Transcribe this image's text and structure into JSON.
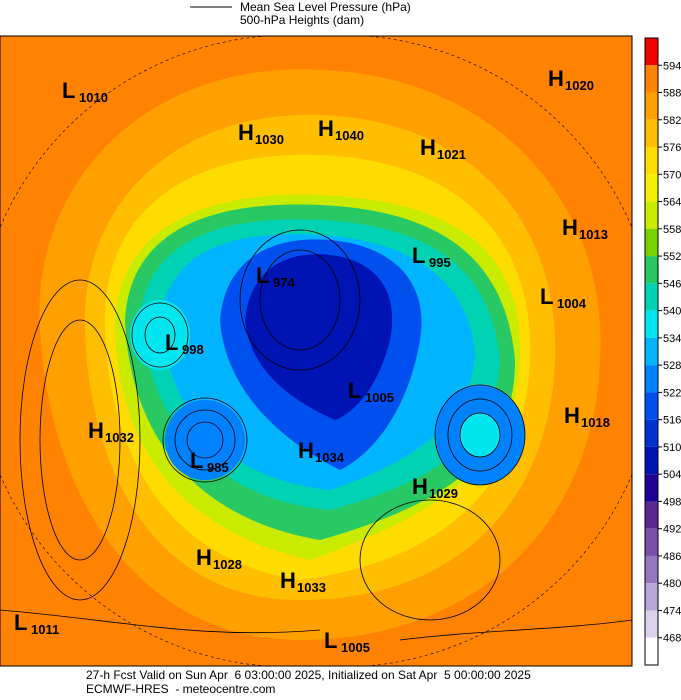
{
  "header": {
    "legend": [
      "Mean Sea Level Pressure (hPa)",
      "500-hPa Heights (dam)"
    ]
  },
  "colorbar": {
    "ticks": [
      594,
      588,
      582,
      576,
      570,
      564,
      558,
      552,
      546,
      540,
      534,
      528,
      522,
      516,
      510,
      504,
      498,
      492,
      486,
      480,
      474,
      468
    ],
    "colors": [
      "#f00000",
      "#ff8200",
      "#ffa000",
      "#ffbe00",
      "#ffdc00",
      "#f5f000",
      "#c8eb00",
      "#78d200",
      "#28c864",
      "#00d2b4",
      "#00e6f0",
      "#00b4ff",
      "#0082ff",
      "#0050f0",
      "#0032d2",
      "#0014b4",
      "#1e0096",
      "#5a2896",
      "#7850aa",
      "#9678c0",
      "#b9a5d7",
      "#dcd2eb",
      "#ffffff"
    ]
  },
  "centers": [
    {
      "kind": "L",
      "value": "1010"
    },
    {
      "kind": "H",
      "value": "1020"
    },
    {
      "kind": "H",
      "value": "1030"
    },
    {
      "kind": "H",
      "value": "1040"
    },
    {
      "kind": "H",
      "value": "1021"
    },
    {
      "kind": "H",
      "value": "1013"
    },
    {
      "kind": "L",
      "value": "995"
    },
    {
      "kind": "L",
      "value": "974"
    },
    {
      "kind": "L",
      "value": "1004"
    },
    {
      "kind": "L",
      "value": "998"
    },
    {
      "kind": "L",
      "value": "1005"
    },
    {
      "kind": "H",
      "value": "1032"
    },
    {
      "kind": "H",
      "value": "1018"
    },
    {
      "kind": "L",
      "value": "985"
    },
    {
      "kind": "H",
      "value": "1034"
    },
    {
      "kind": "H",
      "value": "1029"
    },
    {
      "kind": "H",
      "value": "1028"
    },
    {
      "kind": "H",
      "value": "1033"
    },
    {
      "kind": "L",
      "value": "1011"
    },
    {
      "kind": "L",
      "value": "1005"
    }
  ],
  "footer": {
    "valid": "27-h Fcst Valid on Sun Apr  6 03:00:00 2025, Initialized on Sat Apr  5 00:00:00 2025",
    "source": "ECMWF-HRES  - meteocentre.com"
  }
}
